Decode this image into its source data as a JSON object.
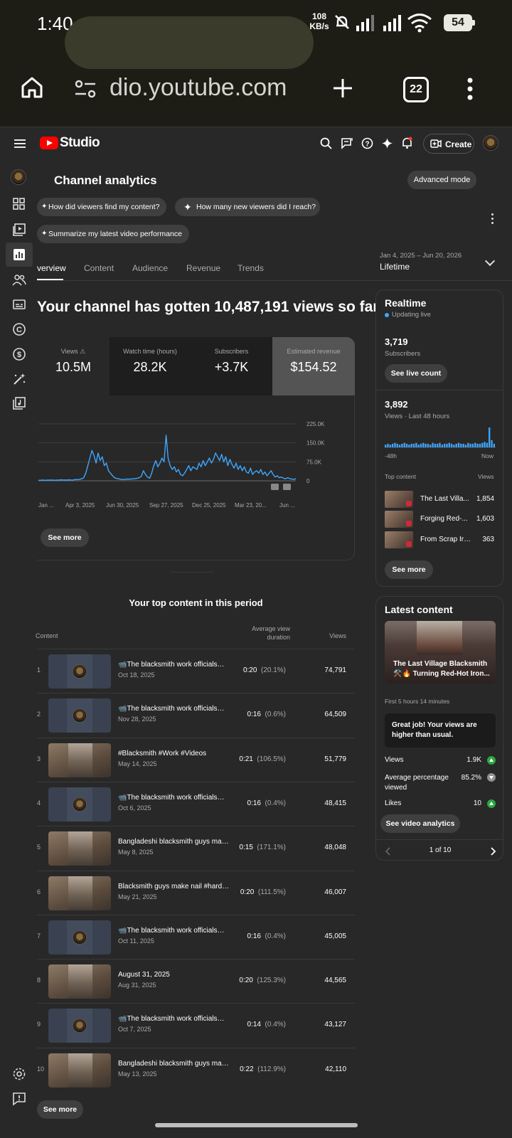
{
  "status_bar": {
    "time": "1:40",
    "net_speed_value": "108",
    "net_speed_unit": "KB/s",
    "battery": "54"
  },
  "browser": {
    "url": "dio.youtube.com",
    "tab_count": "22"
  },
  "studio": {
    "brand": "Studio",
    "create_label": "Create",
    "icons": [
      "menu-icon",
      "search-icon",
      "feedback-icon",
      "help-icon",
      "sparkle-icon",
      "bell-icon",
      "create-video-icon"
    ]
  },
  "left_rail": {
    "icons": [
      "channel-avatar",
      "dashboard-icon",
      "content-icon",
      "analytics-icon",
      "community-icon",
      "subtitles-icon",
      "copyright-icon",
      "earn-icon",
      "customization-icon",
      "audio-library-icon",
      "settings-icon",
      "send-feedback-icon"
    ],
    "active": "analytics-icon"
  },
  "analytics": {
    "title": "Channel analytics",
    "advanced_mode": "Advanced mode",
    "chips": [
      "How did viewers find my content?",
      "How many new viewers did I reach?",
      "Summarize my latest video performance"
    ],
    "tabs": [
      "verview",
      "Content",
      "Audience",
      "Revenue",
      "Trends"
    ],
    "active_tab": "verview",
    "date_range": "Jan 4, 2025 – Jun 20, 2026",
    "period": "Lifetime",
    "headline": "Your channel has gotten 10,487,191 views so far",
    "metrics": [
      {
        "label": "Views",
        "value": "10.5M",
        "warning": true
      },
      {
        "label": "Watch time (hours)",
        "value": "28.2K"
      },
      {
        "label": "Subscribers",
        "value": "+3.7K"
      },
      {
        "label": "Estimated revenue",
        "value": "$154.52",
        "selected": true
      }
    ],
    "see_more": "See more"
  },
  "chart_data": {
    "type": "line",
    "series_color": "#3ea6ff",
    "y_ticks": [
      "225.0K",
      "150.0K",
      "75.0K",
      "0"
    ],
    "ylim": [
      0,
      225000
    ],
    "x_ticks": [
      "Jan ...",
      "Apr 3, 2025",
      "Jun 30, 2025",
      "Sep 27, 2025",
      "Dec 25, 2025",
      "Mar 23, 20...",
      "Jun ..."
    ],
    "grid": true,
    "values": [
      2000,
      2000,
      3000,
      2000,
      2500,
      3000,
      2500,
      3000,
      2000,
      3000,
      2500,
      4000,
      3000,
      3500,
      3000,
      4000,
      3000,
      3500,
      5000,
      4500,
      6000,
      8000,
      12000,
      30000,
      60000,
      90000,
      120000,
      100000,
      70000,
      110000,
      80000,
      95000,
      60000,
      70000,
      40000,
      30000,
      20000,
      12000,
      9000,
      8000,
      6000,
      5000,
      6000,
      7000,
      6500,
      7000,
      8000,
      8500,
      10000,
      12000,
      18000,
      40000,
      25000,
      15000,
      10000,
      30000,
      60000,
      80000,
      55000,
      70000,
      90000,
      75000,
      180000,
      90000,
      60000,
      45000,
      55000,
      35000,
      45000,
      25000,
      20000,
      30000,
      45000,
      60000,
      40000,
      55000,
      50000,
      45000,
      70000,
      55000,
      80000,
      60000,
      75000,
      90000,
      70000,
      85000,
      110000,
      95000,
      80000,
      105000,
      75000,
      95000,
      60000,
      85000,
      65000,
      50000,
      70000,
      45000,
      60000,
      40000,
      55000,
      35000,
      30000,
      50000,
      25000,
      35000,
      40000,
      30000,
      45000,
      25000,
      35000,
      20000,
      30000,
      40000,
      25000,
      15000,
      20000,
      12000,
      15000,
      10000,
      8000,
      12000,
      9000,
      7000,
      6000,
      8000
    ]
  },
  "top_content": {
    "title": "Your top content in this period",
    "headers": {
      "content": "Content",
      "avg": "Average view duration",
      "views": "Views"
    },
    "rows": [
      {
        "rank": "1",
        "title": "📹The blacksmith work officials🥇 i...",
        "date": "Oct 18, 2025",
        "dur": "0:20",
        "pct": "(20.1%)",
        "views": "74,791",
        "thumb": "logo"
      },
      {
        "rank": "2",
        "title": "📹The blacksmith work officials🥇 i...",
        "date": "Nov 28, 2025",
        "dur": "0:16",
        "pct": "(0.6%)",
        "views": "64,509",
        "thumb": "logo"
      },
      {
        "rank": "3",
        "title": "#Blacksmith #Work #Videos",
        "date": "May 14, 2025",
        "dur": "0:21",
        "pct": "(106.5%)",
        "views": "51,779",
        "thumb": "photo"
      },
      {
        "rank": "4",
        "title": "📹The blacksmith work officials🥇 i...",
        "date": "Oct 6, 2025",
        "dur": "0:16",
        "pct": "(0.4%)",
        "views": "48,415",
        "thumb": "logo"
      },
      {
        "rank": "5",
        "title": "Bangladeshi blacksmith guys make ...",
        "date": "May 8, 2025",
        "dur": "0:15",
        "pct": "(171.1%)",
        "views": "48,048",
        "thumb": "photo"
      },
      {
        "rank": "6",
        "title": "Blacksmith guys make nail #hardw...",
        "date": "May 21, 2025",
        "dur": "0:20",
        "pct": "(111.5%)",
        "views": "46,007",
        "thumb": "photo"
      },
      {
        "rank": "7",
        "title": "📹The blacksmith work officials🥇 i...",
        "date": "Oct 11, 2025",
        "dur": "0:16",
        "pct": "(0.4%)",
        "views": "45,005",
        "thumb": "logo"
      },
      {
        "rank": "8",
        "title": "August 31, 2025",
        "date": "Aug 31, 2025",
        "dur": "0:20",
        "pct": "(125.3%)",
        "views": "44,565",
        "thumb": "photo"
      },
      {
        "rank": "9",
        "title": "📹The blacksmith work officials🥇 i...",
        "date": "Oct 7, 2025",
        "dur": "0:14",
        "pct": "(0.4%)",
        "views": "43,127",
        "thumb": "logo"
      },
      {
        "rank": "10",
        "title": "Bangladeshi blacksmith guys make ...",
        "date": "May 13, 2025",
        "dur": "0:22",
        "pct": "(112.9%)",
        "views": "42,110",
        "thumb": "photo"
      }
    ],
    "see_more": "See more"
  },
  "realtime": {
    "title": "Realtime",
    "updating": "Updating live",
    "subs_value": "3,719",
    "subs_label": "Subscribers",
    "see_live_count": "See live count",
    "views_value": "3,892",
    "views_label": "Views · Last 48 hours",
    "bar_values": [
      3,
      4,
      3,
      4,
      5,
      4,
      3,
      4,
      5,
      4,
      3,
      4,
      4,
      5,
      3,
      4,
      5,
      4,
      4,
      3,
      5,
      4,
      4,
      5,
      3,
      4,
      4,
      5,
      4,
      3,
      4,
      5,
      4,
      4,
      3,
      5,
      4,
      4,
      5,
      4,
      4,
      5,
      6,
      5,
      22,
      8,
      4
    ],
    "x_left": "-48h",
    "x_right": "Now",
    "top_content_label": "Top content",
    "views_col": "Views",
    "items": [
      {
        "name": "The Last Villa...",
        "views": "1,854"
      },
      {
        "name": "Forging Red-...",
        "views": "1,603"
      },
      {
        "name": "From Scrap Iro...",
        "views": "363"
      }
    ],
    "see_more": "See more"
  },
  "latest": {
    "title": "Latest content",
    "video_title": "The Last Village Blacksmith ⚒️🔥 Turning Red-Hot Iron...",
    "time_since": "First 5 hours 14 minutes",
    "callout": "Great job! Your views are higher than usual.",
    "stats": [
      {
        "label": "Views",
        "value": "1.9K",
        "trend": "up"
      },
      {
        "label": "Average percentage viewed",
        "value": "85.2%",
        "trend": "down"
      },
      {
        "label": "Likes",
        "value": "10",
        "trend": "up"
      }
    ],
    "see_video_analytics": "See video analytics",
    "pager": "1 of 10"
  }
}
